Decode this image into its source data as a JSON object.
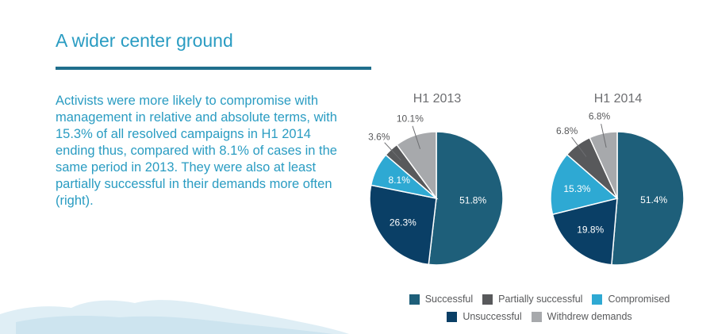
{
  "page": {
    "title": "A wider center ground",
    "body": "Activists were more likely to compromise with management in relative and absolute terms, with 15.3% of all resolved campaigns in H1 2014 ending thus, compared with 8.1% of cases in the same period in 2013. They were also at least partially successful in their demands more often (right)."
  },
  "colors": {
    "accent": "#2a9cc2",
    "rule": "#1f6e8c",
    "Successful": "#1e5f7a",
    "Partially successful": "#58595b",
    "Compromised": "#2ea9d3",
    "Unsuccessful": "#0a3f66",
    "Withdrew demands": "#a7a9ac"
  },
  "chart_data": [
    {
      "type": "pie",
      "title": "H1 2013",
      "slices": [
        {
          "label": "Successful",
          "value": 51.8,
          "text": "51.8%"
        },
        {
          "label": "Unsuccessful",
          "value": 26.3,
          "text": "26.3%"
        },
        {
          "label": "Compromised",
          "value": 8.1,
          "text": "8.1%"
        },
        {
          "label": "Partially successful",
          "value": 3.6,
          "text": "3.6%"
        },
        {
          "label": "Withdrew demands",
          "value": 10.1,
          "text": "10.1%"
        }
      ]
    },
    {
      "type": "pie",
      "title": "H1 2014",
      "slices": [
        {
          "label": "Successful",
          "value": 51.4,
          "text": "51.4%"
        },
        {
          "label": "Unsuccessful",
          "value": 19.8,
          "text": "19.8%"
        },
        {
          "label": "Compromised",
          "value": 15.3,
          "text": "15.3%"
        },
        {
          "label": "Partially successful",
          "value": 6.8,
          "text": "6.8%"
        },
        {
          "label": "Withdrew demands",
          "value": 6.8,
          "text": "6.8%"
        }
      ]
    }
  ],
  "legend": {
    "row1": [
      "Successful",
      "Partially successful",
      "Compromised"
    ],
    "row2": [
      "Unsuccessful",
      "Withdrew demands"
    ]
  }
}
